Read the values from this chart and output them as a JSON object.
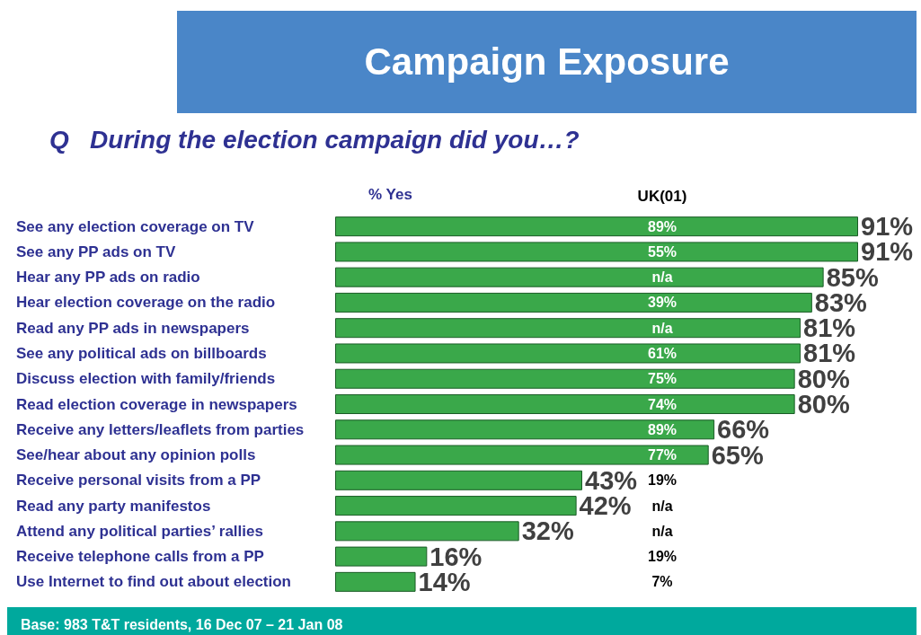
{
  "chart_data": {
    "type": "bar",
    "orientation": "horizontal",
    "title": "Campaign Exposure",
    "subtitle": "Q   During the election campaign did you…?",
    "xlabel": "% Yes",
    "categories": [
      "See any election coverage on TV",
      "See any PP ads on TV",
      "Hear any PP ads on radio",
      "Hear election coverage on the radio",
      "Read any PP ads in newspapers",
      "See any political ads on billboards",
      "Discuss election with family/friends",
      "Read election coverage in newspapers",
      "Receive any letters/leaflets from parties",
      "See/hear about any opinion polls",
      "Receive personal visits from a PP",
      "Read any party manifestos",
      "Attend any political parties’ rallies",
      "Receive telephone calls from a PP",
      "Use Internet to find out about election"
    ],
    "values": [
      91,
      91,
      85,
      83,
      81,
      81,
      80,
      80,
      66,
      65,
      43,
      42,
      32,
      16,
      14
    ],
    "value_labels": [
      "91%",
      "91%",
      "85%",
      "83%",
      "81%",
      "81%",
      "80%",
      "80%",
      "66%",
      "65%",
      "43%",
      "42%",
      "32%",
      "16%",
      "14%"
    ],
    "color": "#3aa84a",
    "tick_labels": "y",
    "annotations": [
      "UK(01)",
      "89%",
      "55%",
      "n/a",
      "39%",
      "n/a",
      "61%",
      "75%",
      "74%",
      "89%",
      "77%",
      "19%",
      "n/a",
      "n/a",
      "19%",
      "7%",
      "Base: 983 T&T residents, 16 Dec 07 – 21 Jan 08"
    ]
  }
}
